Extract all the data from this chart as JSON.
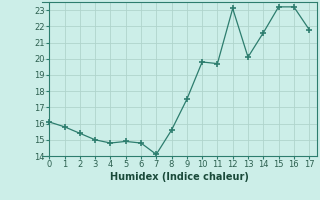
{
  "x": [
    0,
    1,
    2,
    3,
    4,
    5,
    6,
    7,
    8,
    9,
    10,
    11,
    12,
    13,
    14,
    15,
    16,
    17
  ],
  "y": [
    16.1,
    15.8,
    15.4,
    15.0,
    14.8,
    14.9,
    14.8,
    14.1,
    15.6,
    17.5,
    19.8,
    19.7,
    23.1,
    20.1,
    21.6,
    23.2,
    23.2,
    21.8
  ],
  "line_color": "#2d7d6e",
  "marker": "+",
  "marker_size": 4,
  "marker_linewidth": 1.2,
  "background_color": "#cceee8",
  "grid_color": "#b0d4cc",
  "xlabel": "Humidex (Indice chaleur)",
  "xlabel_fontsize": 7,
  "tick_fontsize": 6,
  "ylim": [
    14,
    23.5
  ],
  "xlim": [
    -0.5,
    17.5
  ],
  "yticks": [
    14,
    15,
    16,
    17,
    18,
    19,
    20,
    21,
    22,
    23
  ],
  "xticks": [
    0,
    1,
    2,
    3,
    4,
    5,
    6,
    7,
    8,
    9,
    10,
    11,
    12,
    13,
    14,
    15,
    16,
    17
  ]
}
